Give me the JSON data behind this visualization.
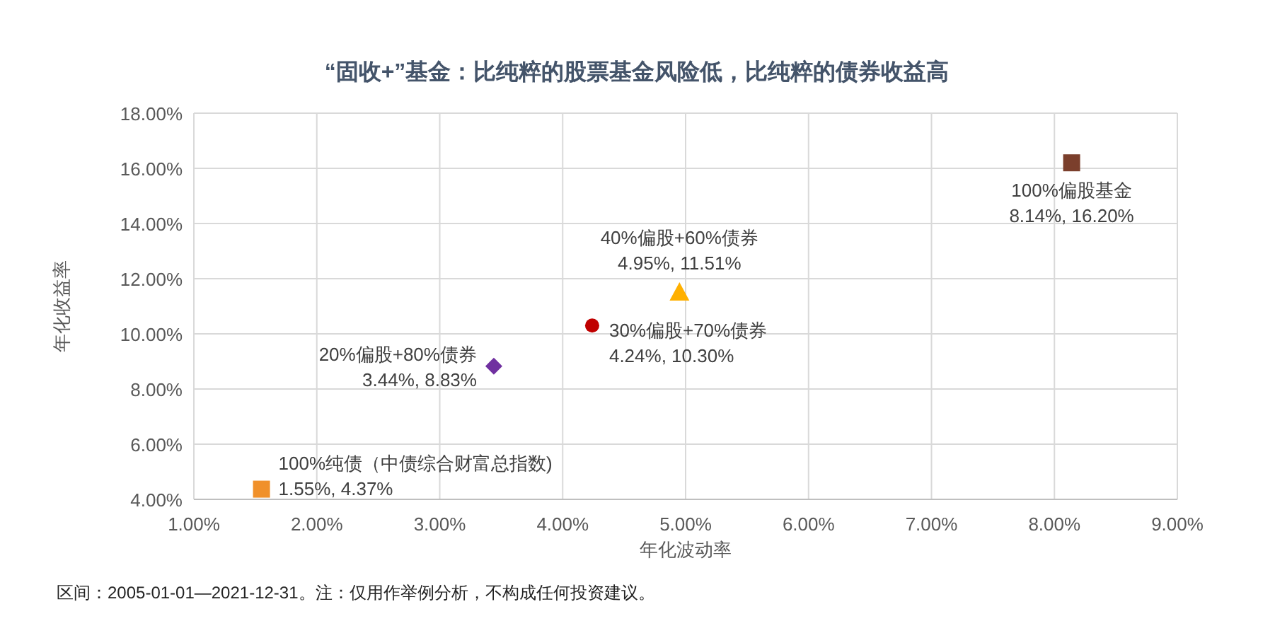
{
  "chart_data": {
    "type": "scatter",
    "title": "“固收+”基金：比纯粹的股票基金风险低，比纯粹的债券收益高",
    "xlabel": "年化波动率",
    "ylabel": "年化收益率",
    "xlim": [
      1,
      9
    ],
    "ylim": [
      4,
      18
    ],
    "xticks": [
      {
        "value": 1,
        "label": "1.00%"
      },
      {
        "value": 2,
        "label": "2.00%"
      },
      {
        "value": 3,
        "label": "3.00%"
      },
      {
        "value": 4,
        "label": "4.00%"
      },
      {
        "value": 5,
        "label": "5.00%"
      },
      {
        "value": 6,
        "label": "6.00%"
      },
      {
        "value": 7,
        "label": "7.00%"
      },
      {
        "value": 8,
        "label": "8.00%"
      },
      {
        "value": 9,
        "label": "9.00%"
      }
    ],
    "yticks": [
      {
        "value": 4,
        "label": "4.00%"
      },
      {
        "value": 6,
        "label": "6.00%"
      },
      {
        "value": 8,
        "label": "8.00%"
      },
      {
        "value": 10,
        "label": "10.00%"
      },
      {
        "value": 12,
        "label": "12.00%"
      },
      {
        "value": 14,
        "label": "14.00%"
      },
      {
        "value": 16,
        "label": "16.00%"
      },
      {
        "value": 18,
        "label": "18.00%"
      }
    ],
    "grid": true,
    "series": [
      {
        "name": "100%纯债（中债综合财富总指数)",
        "color": "#f0902a",
        "marker": "square",
        "x": [
          1.55
        ],
        "values": [
          4.37
        ],
        "value_labels": [
          "1.55%, 4.37%"
        ]
      },
      {
        "name": "20%偏股+80%债券",
        "color": "#7030a0",
        "marker": "diamond",
        "x": [
          3.44
        ],
        "values": [
          8.83
        ],
        "value_labels": [
          "3.44%, 8.83%"
        ]
      },
      {
        "name": "30%偏股+70%债券",
        "color": "#c00000",
        "marker": "circle",
        "x": [
          4.24
        ],
        "values": [
          10.3
        ],
        "value_labels": [
          "4.24%, 10.30%"
        ]
      },
      {
        "name": "40%偏股+60%债券",
        "color": "#ffb000",
        "marker": "triangle",
        "x": [
          4.95
        ],
        "values": [
          11.51
        ],
        "value_labels": [
          "4.95%, 11.51%"
        ]
      },
      {
        "name": "100%偏股基金",
        "color": "#7b3f2c",
        "marker": "square",
        "x": [
          8.14
        ],
        "values": [
          16.2
        ],
        "value_labels": [
          "8.14%, 16.20%"
        ]
      }
    ],
    "annotations": [
      "区间：2005-01-01—2021-12-31。注：仅用作举例分析，不构成任何投资建议。"
    ]
  }
}
